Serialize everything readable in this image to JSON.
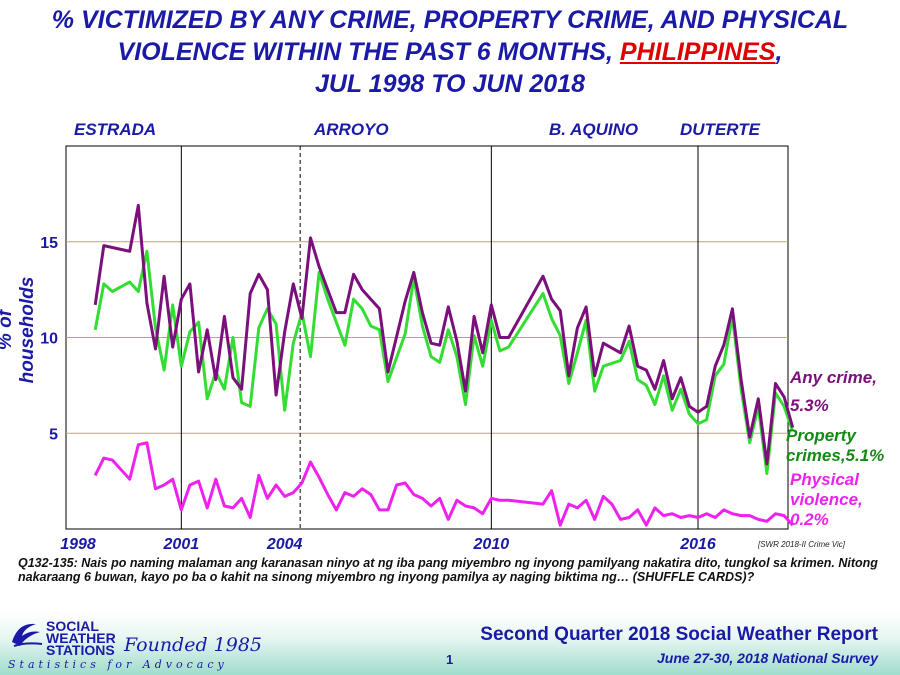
{
  "title": {
    "line1": "% VICTIMIZED BY ANY CRIME, PROPERTY CRIME, AND PHYSICAL",
    "line2_pre": "VIOLENCE WITHIN THE PAST 6 MONTHS, ",
    "line2_country": "PHILIPPINES",
    "line2_post": ",",
    "line3": "JUL 1998 TO JUN 2018"
  },
  "administrations": [
    "ESTRADA",
    "ARROYO",
    "B. AQUINO",
    "DUTERTE"
  ],
  "legend": {
    "any_crime": "Any crime,",
    "any_crime_value": "5.3%",
    "property_line1": "Property",
    "property_line2": "crimes,5.1%",
    "physical_line1": "Physical",
    "physical_line2": "violence,",
    "physical_value": "0.2%"
  },
  "source_note": "[SWR 2018-II Crime Vic]",
  "question": "Q132-135: Nais po naming malaman ang karanasan ninyo at ng iba pang miyembro ng inyong pamilyang nakatira dito, tungkol sa krimen. Nitong nakaraang 6 buwan, kayo po ba o kahit na sinong miyembro ng inyong pamilya ay naging biktima ng… (SHUFFLE CARDS)?",
  "footer": {
    "logo_line1": "SOCIAL",
    "logo_line2": "WEATHER",
    "logo_line3": "STATIONS",
    "founded": "Founded 1985",
    "tagline": "Statistics for Advocacy",
    "report_title": "Second Quarter 2018 Social Weather Report",
    "page_number": "1",
    "survey": "June 27-30, 2018 National Survey"
  },
  "colors": {
    "any_crime": "#7b0f7b",
    "property": "#33dd33",
    "physical": "#ee22ee",
    "title_blue": "#1a1aa6",
    "property_label": "#138a13",
    "gridline": "#b9a86a"
  },
  "chart_data": {
    "type": "line",
    "ylabel": "% of households",
    "xlabel": "",
    "xlim": [
      1998.0,
      2018.5
    ],
    "ylim": [
      0,
      20
    ],
    "yticks": [
      5,
      10,
      15
    ],
    "xticks": [
      1998,
      2001,
      2004,
      2010,
      2016
    ],
    "admin_boundaries": [
      2001,
      2010,
      2016
    ],
    "arroyo_term_marker": 2004.45,
    "series": [
      {
        "name": "Any crime",
        "points": [
          [
            1998.5,
            11.7
          ],
          [
            1998.75,
            14.8
          ],
          [
            1999.5,
            14.5
          ],
          [
            1999.75,
            16.9
          ],
          [
            2000.0,
            11.8
          ],
          [
            2000.25,
            9.4
          ],
          [
            2000.5,
            13.2
          ],
          [
            2000.75,
            9.5
          ],
          [
            2001.0,
            12.0
          ],
          [
            2001.25,
            12.8
          ],
          [
            2001.5,
            8.2
          ],
          [
            2001.75,
            10.4
          ],
          [
            2002.0,
            7.8
          ],
          [
            2002.25,
            11.1
          ],
          [
            2002.5,
            7.9
          ],
          [
            2002.75,
            7.3
          ],
          [
            2003.0,
            12.3
          ],
          [
            2003.25,
            13.3
          ],
          [
            2003.5,
            12.5
          ],
          [
            2003.75,
            7.0
          ],
          [
            2004.0,
            10.3
          ],
          [
            2004.25,
            12.8
          ],
          [
            2004.5,
            11.0
          ],
          [
            2004.75,
            15.2
          ],
          [
            2005.0,
            13.7
          ],
          [
            2005.5,
            11.3
          ],
          [
            2005.75,
            11.3
          ],
          [
            2006.0,
            13.3
          ],
          [
            2006.25,
            12.5
          ],
          [
            2006.5,
            12.0
          ],
          [
            2006.75,
            11.5
          ],
          [
            2007.0,
            8.2
          ],
          [
            2007.5,
            11.9
          ],
          [
            2007.75,
            13.4
          ],
          [
            2008.0,
            11.3
          ],
          [
            2008.25,
            9.7
          ],
          [
            2008.5,
            9.6
          ],
          [
            2008.75,
            11.6
          ],
          [
            2009.0,
            9.8
          ],
          [
            2009.25,
            7.2
          ],
          [
            2009.5,
            11.1
          ],
          [
            2009.75,
            9.2
          ],
          [
            2010.0,
            11.7
          ],
          [
            2010.25,
            10.0
          ],
          [
            2010.5,
            10.0
          ],
          [
            2011.5,
            13.2
          ],
          [
            2011.75,
            12.0
          ],
          [
            2012.0,
            11.4
          ],
          [
            2012.25,
            8.0
          ],
          [
            2012.5,
            10.5
          ],
          [
            2012.75,
            11.6
          ],
          [
            2013.0,
            8.0
          ],
          [
            2013.25,
            9.7
          ],
          [
            2013.75,
            9.2
          ],
          [
            2014.0,
            10.6
          ],
          [
            2014.25,
            8.5
          ],
          [
            2014.5,
            8.3
          ],
          [
            2014.75,
            7.3
          ],
          [
            2015.0,
            8.8
          ],
          [
            2015.25,
            6.8
          ],
          [
            2015.5,
            7.9
          ],
          [
            2015.75,
            6.4
          ],
          [
            2016.0,
            6.1
          ],
          [
            2016.25,
            6.4
          ],
          [
            2016.5,
            8.5
          ],
          [
            2016.75,
            9.6
          ],
          [
            2017.0,
            11.5
          ],
          [
            2017.25,
            7.8
          ],
          [
            2017.5,
            4.8
          ],
          [
            2017.75,
            6.8
          ],
          [
            2018.0,
            3.4
          ],
          [
            2018.25,
            7.6
          ],
          [
            2018.5,
            6.9
          ],
          [
            2018.75,
            5.3
          ]
        ]
      },
      {
        "name": "Property crimes",
        "points": [
          [
            1998.5,
            10.4
          ],
          [
            1998.75,
            12.8
          ],
          [
            1999.0,
            12.4
          ],
          [
            1999.5,
            12.9
          ],
          [
            1999.75,
            12.4
          ],
          [
            2000.0,
            14.5
          ],
          [
            2000.25,
            10.5
          ],
          [
            2000.5,
            8.3
          ],
          [
            2000.75,
            11.7
          ],
          [
            2001.0,
            8.5
          ],
          [
            2001.25,
            10.3
          ],
          [
            2001.5,
            10.8
          ],
          [
            2001.75,
            6.8
          ],
          [
            2002.0,
            8.2
          ],
          [
            2002.25,
            7.3
          ],
          [
            2002.5,
            10.0
          ],
          [
            2002.75,
            6.6
          ],
          [
            2003.0,
            6.4
          ],
          [
            2003.25,
            10.5
          ],
          [
            2003.5,
            11.5
          ],
          [
            2003.75,
            10.7
          ],
          [
            2004.0,
            6.2
          ],
          [
            2004.25,
            9.7
          ],
          [
            2004.5,
            11.3
          ],
          [
            2004.75,
            9.0
          ],
          [
            2005.0,
            13.4
          ],
          [
            2005.25,
            12.0
          ],
          [
            2005.75,
            9.6
          ],
          [
            2006.0,
            12.0
          ],
          [
            2006.25,
            11.5
          ],
          [
            2006.5,
            10.6
          ],
          [
            2006.75,
            10.4
          ],
          [
            2007.0,
            7.7
          ],
          [
            2007.5,
            10.2
          ],
          [
            2007.75,
            13.1
          ],
          [
            2008.0,
            10.6
          ],
          [
            2008.25,
            9.0
          ],
          [
            2008.5,
            8.7
          ],
          [
            2008.75,
            10.4
          ],
          [
            2009.0,
            9.0
          ],
          [
            2009.25,
            6.5
          ],
          [
            2009.5,
            10.1
          ],
          [
            2009.75,
            8.5
          ],
          [
            2010.0,
            10.9
          ],
          [
            2010.25,
            9.3
          ],
          [
            2010.5,
            9.5
          ],
          [
            2011.5,
            12.3
          ],
          [
            2011.75,
            11.0
          ],
          [
            2012.0,
            10.1
          ],
          [
            2012.25,
            7.6
          ],
          [
            2012.5,
            9.2
          ],
          [
            2012.75,
            10.9
          ],
          [
            2013.0,
            7.2
          ],
          [
            2013.25,
            8.5
          ],
          [
            2013.75,
            8.8
          ],
          [
            2014.0,
            9.8
          ],
          [
            2014.25,
            7.8
          ],
          [
            2014.5,
            7.5
          ],
          [
            2014.75,
            6.5
          ],
          [
            2015.0,
            8.0
          ],
          [
            2015.25,
            6.2
          ],
          [
            2015.5,
            7.3
          ],
          [
            2015.75,
            6.0
          ],
          [
            2016.0,
            5.5
          ],
          [
            2016.25,
            5.7
          ],
          [
            2016.5,
            8.0
          ],
          [
            2016.75,
            8.6
          ],
          [
            2017.0,
            11.1
          ],
          [
            2017.25,
            7.3
          ],
          [
            2017.5,
            4.5
          ],
          [
            2017.75,
            6.4
          ],
          [
            2018.0,
            2.9
          ],
          [
            2018.25,
            7.1
          ],
          [
            2018.5,
            6.4
          ],
          [
            2018.75,
            5.1
          ]
        ]
      },
      {
        "name": "Physical violence",
        "points": [
          [
            1998.5,
            2.8
          ],
          [
            1998.75,
            3.7
          ],
          [
            1999.0,
            3.6
          ],
          [
            1999.5,
            2.6
          ],
          [
            1999.75,
            4.4
          ],
          [
            2000.0,
            4.5
          ],
          [
            2000.25,
            2.1
          ],
          [
            2000.5,
            2.3
          ],
          [
            2000.75,
            2.6
          ],
          [
            2001.0,
            1.0
          ],
          [
            2001.25,
            2.3
          ],
          [
            2001.5,
            2.5
          ],
          [
            2001.75,
            1.1
          ],
          [
            2002.0,
            2.6
          ],
          [
            2002.25,
            1.2
          ],
          [
            2002.5,
            1.1
          ],
          [
            2002.75,
            1.6
          ],
          [
            2003.0,
            0.6
          ],
          [
            2003.25,
            2.8
          ],
          [
            2003.5,
            1.6
          ],
          [
            2003.75,
            2.3
          ],
          [
            2004.0,
            1.7
          ],
          [
            2004.25,
            1.9
          ],
          [
            2004.5,
            2.4
          ],
          [
            2004.75,
            3.5
          ],
          [
            2005.0,
            2.7
          ],
          [
            2005.25,
            1.8
          ],
          [
            2005.5,
            1.0
          ],
          [
            2005.75,
            1.9
          ],
          [
            2006.0,
            1.7
          ],
          [
            2006.25,
            2.1
          ],
          [
            2006.5,
            1.8
          ],
          [
            2006.75,
            1.0
          ],
          [
            2007.0,
            1.0
          ],
          [
            2007.25,
            2.3
          ],
          [
            2007.5,
            2.4
          ],
          [
            2007.75,
            1.8
          ],
          [
            2008.0,
            1.6
          ],
          [
            2008.25,
            1.2
          ],
          [
            2008.5,
            1.6
          ],
          [
            2008.75,
            0.5
          ],
          [
            2009.0,
            1.5
          ],
          [
            2009.25,
            1.2
          ],
          [
            2009.5,
            1.1
          ],
          [
            2009.75,
            0.8
          ],
          [
            2010.0,
            1.6
          ],
          [
            2010.25,
            1.5
          ],
          [
            2010.5,
            1.5
          ],
          [
            2011.5,
            1.3
          ],
          [
            2011.75,
            2.0
          ],
          [
            2012.0,
            0.2
          ],
          [
            2012.25,
            1.3
          ],
          [
            2012.5,
            1.1
          ],
          [
            2012.75,
            1.5
          ],
          [
            2013.0,
            0.5
          ],
          [
            2013.25,
            1.7
          ],
          [
            2013.5,
            1.3
          ],
          [
            2013.75,
            0.5
          ],
          [
            2014.0,
            0.6
          ],
          [
            2014.25,
            1.0
          ],
          [
            2014.5,
            0.2
          ],
          [
            2014.75,
            1.1
          ],
          [
            2015.0,
            0.7
          ],
          [
            2015.25,
            0.8
          ],
          [
            2015.5,
            0.6
          ],
          [
            2015.75,
            0.7
          ],
          [
            2016.0,
            0.6
          ],
          [
            2016.25,
            0.8
          ],
          [
            2016.5,
            0.6
          ],
          [
            2016.75,
            1.0
          ],
          [
            2017.0,
            0.8
          ],
          [
            2017.25,
            0.7
          ],
          [
            2017.5,
            0.7
          ],
          [
            2017.75,
            0.5
          ],
          [
            2018.0,
            0.4
          ],
          [
            2018.25,
            0.8
          ],
          [
            2018.5,
            0.7
          ],
          [
            2018.75,
            0.2
          ]
        ]
      }
    ]
  }
}
